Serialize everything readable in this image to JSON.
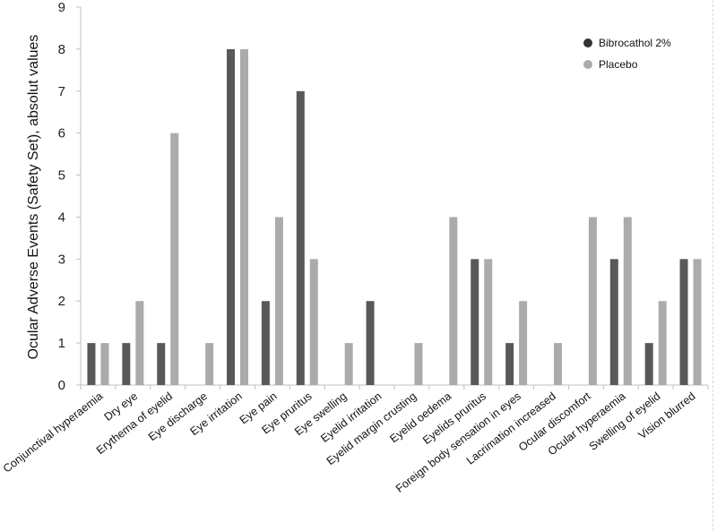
{
  "chart_data": {
    "type": "bar",
    "title": "",
    "xlabel": "",
    "ylabel": "Ocular Adverse Events (Safety Set), absolut values",
    "ylim": [
      0,
      9
    ],
    "yticks": [
      "0",
      "1",
      "2",
      "3",
      "4",
      "5",
      "6",
      "7",
      "8",
      "9"
    ],
    "grid": false,
    "legend_position": "top-right",
    "categories": [
      "Conjunctival hyperaemia",
      "Dry eye",
      "Erythema of eyelid",
      "Eye discharge",
      "Eye irritation",
      "Eye pain",
      "Eye pruritus",
      "Eye swelling",
      "Eyelid irritation",
      "Eyelid margin crusting",
      "Eyelid oedema",
      "Eyelids pruritus",
      "Foreign body sensation in eyes",
      "Lacrimation increased",
      "Ocular discomfort",
      "Ocular hyperaemia",
      "Swelling of eyelid",
      "Vision blurred"
    ],
    "series": [
      {
        "name": "Bibrocathol 2%",
        "color": "#595959",
        "values": [
          1,
          1,
          1,
          0,
          8,
          2,
          7,
          0,
          2,
          0,
          0,
          3,
          1,
          0,
          0,
          3,
          1,
          3
        ]
      },
      {
        "name": "Placebo",
        "color": "#ababab",
        "values": [
          1,
          2,
          6,
          1,
          8,
          4,
          3,
          1,
          0,
          1,
          4,
          3,
          2,
          1,
          4,
          4,
          2,
          3
        ]
      }
    ]
  }
}
